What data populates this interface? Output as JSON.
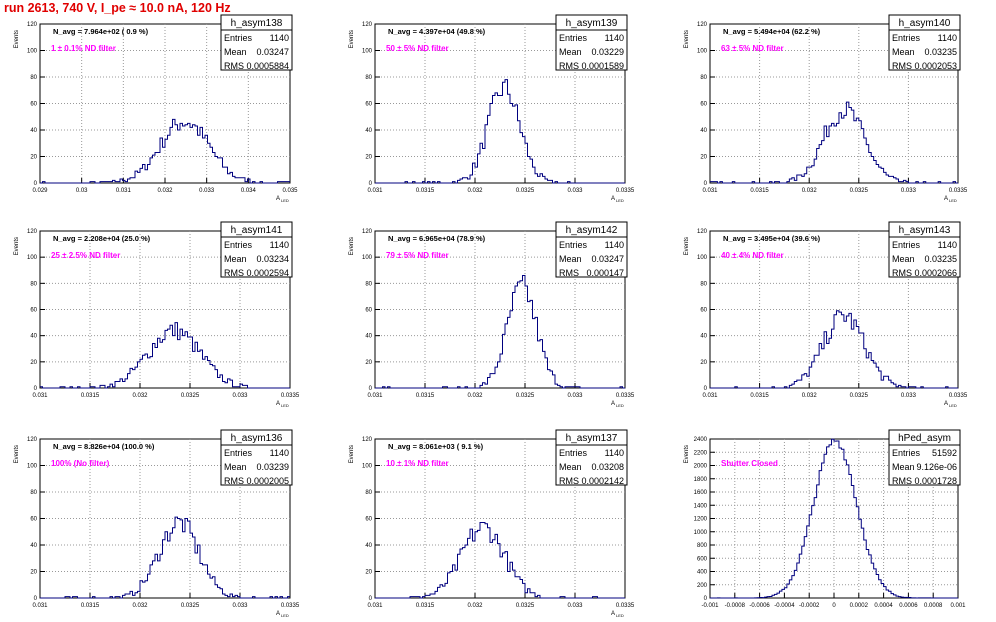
{
  "title": "run 2613,   740 V, I_pe ≈ 10.0 nA, 120 Hz",
  "chart_data": [
    {
      "type": "bar",
      "name": "h_asym138",
      "entries": "1140",
      "mean": "0.03247",
      "rms": "0.0005884",
      "navg": "N_avg = 7.964e+02 ( 0.9 %)",
      "filter": "1 ± 0.1% ND filter",
      "xlim": [
        0.029,
        0.035
      ],
      "ylim": [
        0,
        120
      ],
      "mu": 0.03247,
      "sigma": 0.0005884,
      "bins": 100,
      "xticks": [
        "0.029",
        "0.03",
        "0.031",
        "0.032",
        "0.033",
        "0.034",
        "0.035"
      ],
      "yticks": [
        "0",
        "20",
        "40",
        "60",
        "80",
        "100",
        "120"
      ],
      "ylabel": "Events",
      "xlabel": "A",
      "xsub": "LED"
    },
    {
      "type": "bar",
      "name": "h_asym139",
      "entries": "1140",
      "mean": "0.03229",
      "rms": "0.0001589",
      "navg": "N_avg = 4.397e+04 (49.8 %)",
      "filter": "50 ± 5% ND filter",
      "xlim": [
        0.031,
        0.0335
      ],
      "ylim": [
        0,
        120
      ],
      "mu": 0.03229,
      "sigma": 0.0001589,
      "bins": 100,
      "xticks": [
        "0.031",
        "0.0315",
        "0.032",
        "0.0325",
        "0.033",
        "0.0335"
      ],
      "yticks": [
        "0",
        "20",
        "40",
        "60",
        "80",
        "100",
        "120"
      ],
      "ylabel": "Events",
      "xlabel": "A",
      "xsub": "LED"
    },
    {
      "type": "bar",
      "name": "h_asym140",
      "entries": "1140",
      "mean": "0.03235",
      "rms": "0.0002053",
      "navg": "N_avg = 5.494e+04 (62.2 %)",
      "filter": "63 ± 5% ND filter",
      "xlim": [
        0.031,
        0.0335
      ],
      "ylim": [
        0,
        120
      ],
      "mu": 0.03235,
      "sigma": 0.0002053,
      "bins": 100,
      "xticks": [
        "0.031",
        "0.0315",
        "0.032",
        "0.0325",
        "0.033",
        "0.0335"
      ],
      "yticks": [
        "0",
        "20",
        "40",
        "60",
        "80",
        "100",
        "120"
      ],
      "ylabel": "Events",
      "xlabel": "A",
      "xsub": "LED"
    },
    {
      "type": "bar",
      "name": "h_asym141",
      "entries": "1140",
      "mean": "0.03234",
      "rms": "0.0002594",
      "navg": "N_avg = 2.208e+04 (25.0 %)",
      "filter": "25 ± 2.5% ND filter",
      "xlim": [
        0.031,
        0.0335
      ],
      "ylim": [
        0,
        120
      ],
      "mu": 0.03234,
      "sigma": 0.0002594,
      "bins": 100,
      "xticks": [
        "0.031",
        "0.0315",
        "0.032",
        "0.0325",
        "0.033",
        "0.0335"
      ],
      "yticks": [
        "0",
        "20",
        "40",
        "60",
        "80",
        "100",
        "120"
      ],
      "ylabel": "Events",
      "xlabel": "A",
      "xsub": "LED"
    },
    {
      "type": "bar",
      "name": "h_asym142",
      "entries": "1140",
      "mean": "0.03247",
      "rms": "0.000147",
      "navg": "N_avg = 6.965e+04 (78.9 %)",
      "filter": "79 ± 5% ND filter",
      "xlim": [
        0.031,
        0.0335
      ],
      "ylim": [
        0,
        120
      ],
      "mu": 0.03247,
      "sigma": 0.000147,
      "bins": 100,
      "xticks": [
        "0.031",
        "0.0315",
        "0.032",
        "0.0325",
        "0.033",
        "0.0335"
      ],
      "yticks": [
        "0",
        "20",
        "40",
        "60",
        "80",
        "100",
        "120"
      ],
      "ylabel": "Events",
      "xlabel": "A",
      "xsub": "LED"
    },
    {
      "type": "bar",
      "name": "h_asym143",
      "entries": "1140",
      "mean": "0.03235",
      "rms": "0.0002066",
      "navg": "N_avg = 3.495e+04 (39.6 %)",
      "filter": "40 ± 4% ND filter",
      "xlim": [
        0.031,
        0.0335
      ],
      "ylim": [
        0,
        120
      ],
      "mu": 0.03235,
      "sigma": 0.0002066,
      "bins": 100,
      "xticks": [
        "0.031",
        "0.0315",
        "0.032",
        "0.0325",
        "0.033",
        "0.0335"
      ],
      "yticks": [
        "0",
        "20",
        "40",
        "60",
        "80",
        "100",
        "120"
      ],
      "ylabel": "Events",
      "xlabel": "A",
      "xsub": "LED"
    },
    {
      "type": "bar",
      "name": "h_asym136",
      "entries": "1140",
      "mean": "0.03239",
      "rms": "0.0002005",
      "navg": "N_avg = 8.826e+04 (100.0 %)",
      "filter": "100% (No filter)",
      "xlim": [
        0.031,
        0.0335
      ],
      "ylim": [
        0,
        120
      ],
      "mu": 0.03239,
      "sigma": 0.0002005,
      "bins": 100,
      "xticks": [
        "0.031",
        "0.0315",
        "0.032",
        "0.0325",
        "0.033",
        "0.0335"
      ],
      "yticks": [
        "0",
        "20",
        "40",
        "60",
        "80",
        "100",
        "120"
      ],
      "ylabel": "Events",
      "xlabel": "A",
      "xsub": "LED"
    },
    {
      "type": "bar",
      "name": "h_asym137",
      "entries": "1140",
      "mean": "0.03208",
      "rms": "0.0002142",
      "navg": "N_avg = 8.061e+03 ( 9.1 %)",
      "filter": "10 ± 1% ND filter",
      "xlim": [
        0.031,
        0.0335
      ],
      "ylim": [
        0,
        120
      ],
      "mu": 0.03208,
      "sigma": 0.0002142,
      "bins": 100,
      "xticks": [
        "0.031",
        "0.0315",
        "0.032",
        "0.0325",
        "0.033",
        "0.0335"
      ],
      "yticks": [
        "0",
        "20",
        "40",
        "60",
        "80",
        "100",
        "120"
      ],
      "ylabel": "Events",
      "xlabel": "A",
      "xsub": "LED"
    },
    {
      "type": "bar",
      "name": "hPed_asym",
      "entries": "51592",
      "mean": "9.126e-06",
      "rms": "0.0001728",
      "navg": "",
      "filter": "Shutter Closed",
      "xlim": [
        -0.001,
        0.001
      ],
      "ylim": [
        0,
        2400
      ],
      "mu": 9.126e-06,
      "sigma": 0.0001728,
      "bins": 100,
      "xticks": [
        "-0.001",
        "-0.0008",
        "-0.0006",
        "-0.0004",
        "-0.0002",
        "0",
        "0.0002",
        "0.0004",
        "0.0006",
        "0.0008",
        "0.001"
      ],
      "yticks": [
        "0",
        "200",
        "400",
        "600",
        "800",
        "1000",
        "1200",
        "1400",
        "1600",
        "1800",
        "2000",
        "2200",
        "2400"
      ],
      "ylabel": "Events",
      "xlabel": "",
      "xsub": ""
    }
  ]
}
